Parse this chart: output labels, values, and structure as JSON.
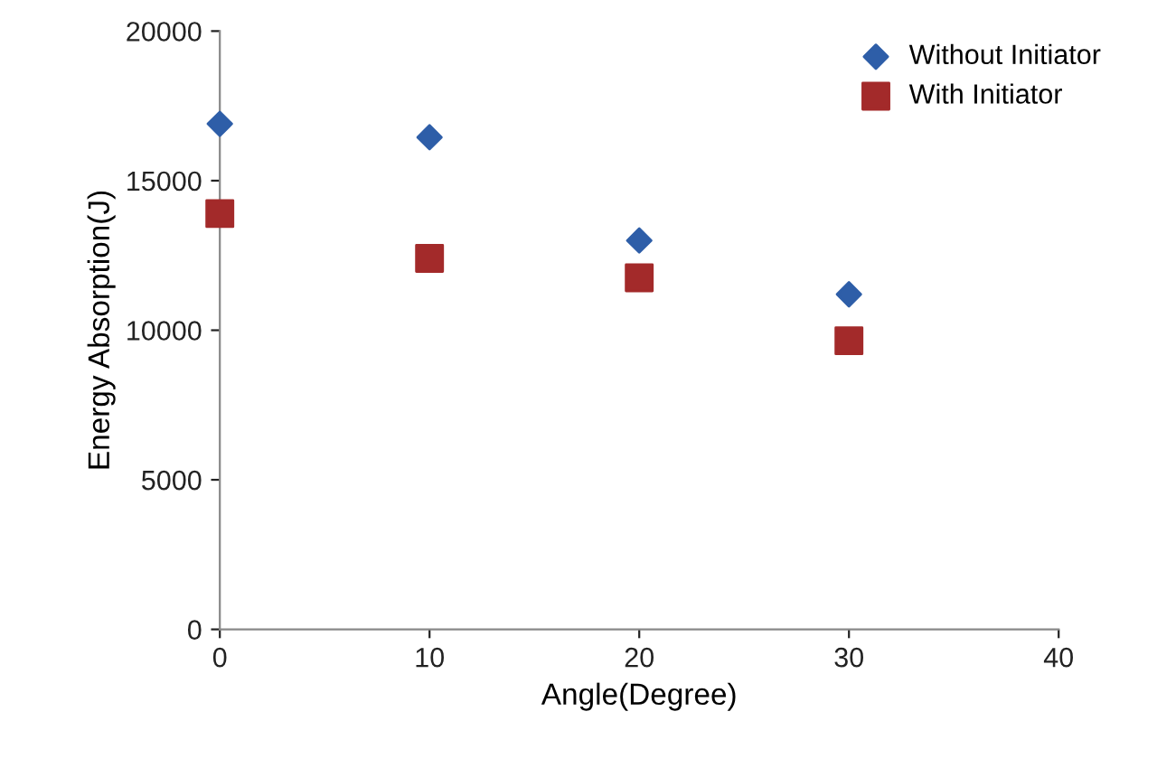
{
  "chart_data": {
    "type": "scatter",
    "xlabel": "Angle(Degree)",
    "ylabel": "Energy Absorption(J)",
    "xlim": [
      0,
      40
    ],
    "xticks": [
      0,
      10,
      20,
      30,
      40
    ],
    "ylim": [
      0,
      20000
    ],
    "yticks": [
      0,
      5000,
      10000,
      15000,
      20000
    ],
    "grid": false,
    "legend": "top right",
    "series": [
      {
        "name": "Without Initiator",
        "color": "#2e5ea8",
        "marker": "diamond",
        "x": [
          0,
          10,
          20,
          30
        ],
        "values": [
          16900,
          16450,
          13000,
          11200
        ]
      },
      {
        "name": "With Initiator",
        "color": "#a32a2a",
        "marker": "square",
        "x": [
          0,
          10,
          20,
          30
        ],
        "values": [
          13900,
          12400,
          11750,
          9650
        ]
      }
    ]
  }
}
